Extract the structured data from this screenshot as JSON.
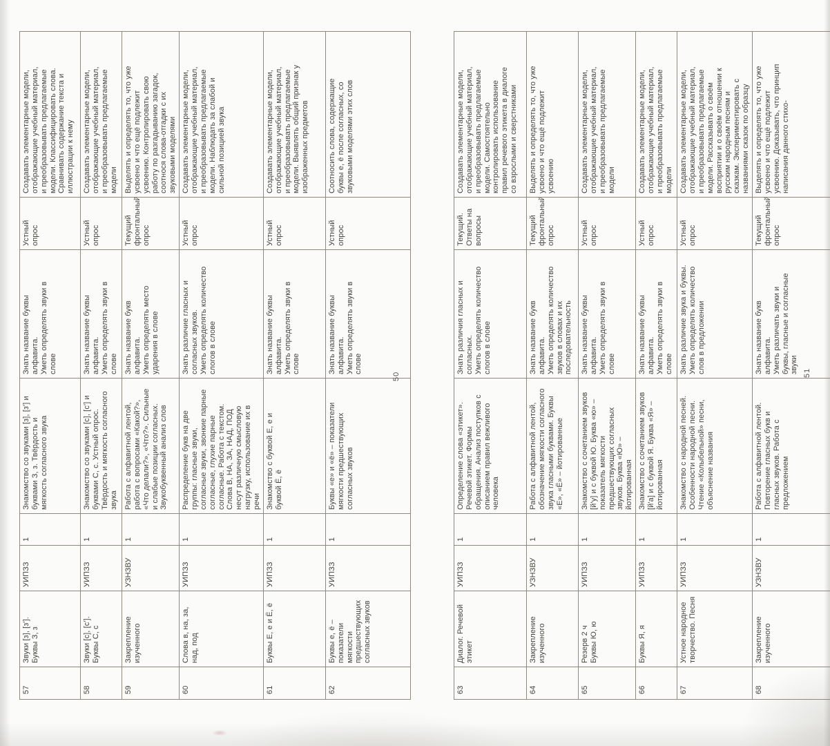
{
  "scan": {
    "pages": [
      {
        "page_number": "50",
        "rows": [
          {
            "num": "57",
            "tema": "Звуки [з], [з'].\nБуквы З, з",
            "tip": "УИПЗЗ",
            "hours": "1",
            "content": "Знакомство со звуками [з], [з'] и буквами З, з. Твёрдость и мягкость согласного звука",
            "know": "Знать название буквы алфавита.\nУметь определять звуки в слове",
            "control": "Устный опрос",
            "uud": "Создавать элементарные модели, отображающие учебный материал, и преобразовывать предлагаемые модели. Классифицировать слова. Сравнивать содержание текста и иллюстрации к нему"
          },
          {
            "num": "58",
            "tema": "Звуки [с], [с'].\nБуквы С, с",
            "tip": "УИПЗЗ",
            "hours": "1",
            "content": "Знакомство со звуками [с], [с'] и буквами С, с. Устный опрос. Твёрдость и мягкость согласного звука",
            "know": "Знать название буквы алфавита.\nУметь определять звуки в слове",
            "control": "Устный опрос",
            "uud": "Создавать элементарные модели, отображающие учебный материал, и преобразовывать предлагаемые модели"
          },
          {
            "num": "59",
            "tema": "Закрепление изученного",
            "tip": "УЗНЗВУ",
            "hours": "1",
            "content": "Работа с алфавитной лентой, работа с вопросами «Какой?», «Что делали?», «Что?». Сильные и слабые позиции согласных. Звукобуквенный анализ слов",
            "know": "Знать название букв алфавита.\nУметь определять место ударения в слове",
            "control": "Текущий фронтальный опрос",
            "uud": "Выделять и определять то, что уже усвоено и что ещё подлежит усвоению. Контролировать свою работу по разгадыванию загадок, соотнося слова-отгадки с их звуковыми моделями"
          },
          {
            "num": "60",
            "tema": "Слова в, на, за, над, под",
            "tip": "УИПЗЗ",
            "hours": "1",
            "content": "Распределение букв на две группы: гласные звуки, согласные звуки, звонкие парные согласные, глухие парные согласные. Работа с текстом. Слова В, НА, ЗА, НАД, ПОД несут различную смысловую нагрузку, использование их в речи",
            "know": "Знать различие гласных и согласных звуков.\nУметь определять количество слогов в слове",
            "control": "Устный опрос",
            "uud": "Создавать элементарные модели, отображающие учебный материал, и преобразовывать предлагаемые модели. Наблюдать за слабой и сильной позицией звука"
          },
          {
            "num": "61",
            "tema": "Буквы Е, е и Ё, ё",
            "tip": "УИПЗЗ",
            "hours": "1",
            "content": "Знакомство с буквой Е, е и буквой Ё, ё",
            "know": "Знать название буквы алфавита.\nУметь определять звуки в слове",
            "control": "Устный опрос",
            "uud": "Создавать элементарные модели, отображающие учебный материал, и преобразовывать предлагаемые модели. Выявлять общий признак у изображенных предметов"
          },
          {
            "num": "62",
            "tema": "Буквы е, ё – показатели мягкости предшествующих согласных звуков",
            "tip": "УИПЗЗ",
            "hours": "1",
            "content": "Буквы «е» и «ё» – показатели мягкости предшествующих согласных звуков",
            "know": "Знать название буквы алфавита.\nУметь определять звуки в слове",
            "control": "Устный опрос",
            "uud": "Соотносить слова, содержащие буквы е, ё после согласных, со звуковыми моделями этих слов"
          }
        ]
      },
      {
        "page_number": "51",
        "rows": [
          {
            "num": "63",
            "tema": "Диалог. Речевой этикет",
            "tip": "УИПЗЗ",
            "hours": "1",
            "content": "Определение слова «этикет». Речевой этикет. Формы обращения. Анализ поступков с описанием правил вежливого человека",
            "know": "Знать различия гласных и согласных.\nУметь определять количество слогов в слове",
            "control": "Текущий.\nОтветы на вопросы",
            "uud": "Создавать элементарные модели, отображающие учебный материал, и преобразовывать предлагаемые модели. Самостоятельно контролировать использование правил речевого этикета в диалоге со взрослыми и сверстниками"
          },
          {
            "num": "64",
            "tema": "Закрепление изученного",
            "tip": "УЗНЗВУ",
            "hours": "1",
            "content": "Работа с алфавитной лентой, обозначение мягкости согласного звука гласными буквами. Буквы «Е», «Ё» – йотированные",
            "know": "Знать название букв алфавита.\nУметь определять количество звуков в словах и их последовательность",
            "control": "Текущий фронтальный опрос",
            "uud": "Выделять и определять то, что уже усвоено и что ещё подлежит усвоению"
          },
          {
            "num": "65",
            "tema": "Резерв 2 ч\nБуквы Ю, ю",
            "tip": "УИПЗЗ",
            "hours": "1",
            "content": "Знакомство с сочетанием звуков [й'у] и с буквой Ю. Буква «ю» – показатель мягкости предшествующих согласных звуков. Буква «Ю» – йотированная",
            "know": "Знать название буквы алфавита.\nУметь определять звуки в слове",
            "control": "Устный опрос",
            "uud": "Создавать элементарные модели, отображающие учебный материал, и преобразовывать предлагаемые модели"
          },
          {
            "num": "66",
            "tema": "Буквы Я, я",
            "tip": "УИПЗЗ",
            "hours": "1",
            "content": "Знакомство с сочетанием звуков [й'а] и с буквой Я. Буква «Я» – йотированная",
            "know": "Знать название буквы алфавита.\nУметь определять звуки в слове",
            "control": "Устный опрос",
            "uud": "Создавать элементарные модели, отображающие учебный материал, и преобразовывать предлагаемые модели"
          },
          {
            "num": "67",
            "tema": "Устное народное творчество. Песня",
            "tip": "УИПЗЗ",
            "hours": "1",
            "content": "Знакомство с народной песней. Особенности народной песни. Чтение «Колыбельной» песни, объяснение названия",
            "know": "Знать различие звука и буквы.\nУметь определять количество слов в предложении",
            "control": "Устный опрос",
            "uud": "Создавать элементарные модели, отображающие учебный материал, и преобразовывать предлагаемые модели. Рассказывать о своём восприятии и о своём отношении к русским народным песням и сказкам. Экспериментировать с названиями сказок по образцу"
          },
          {
            "num": "68",
            "tema": "Закрепление изученного",
            "tip": "УЗНЗВУ",
            "hours": "1",
            "content": "Работа с алфавитной лентой. Повторение гласных букв и гласных звуков. Работа с предложением",
            "know": "Знать название букв алфавита.\nУметь различать звуки и буквы, гласные и согласные звуки",
            "control": "Текущий фронтальный опрос",
            "uud": "Выделять и определять то, что уже усвоено и что ещё подлежит усвоению. Доказывать, что принцип написания данного стихо-"
          }
        ]
      }
    ]
  }
}
